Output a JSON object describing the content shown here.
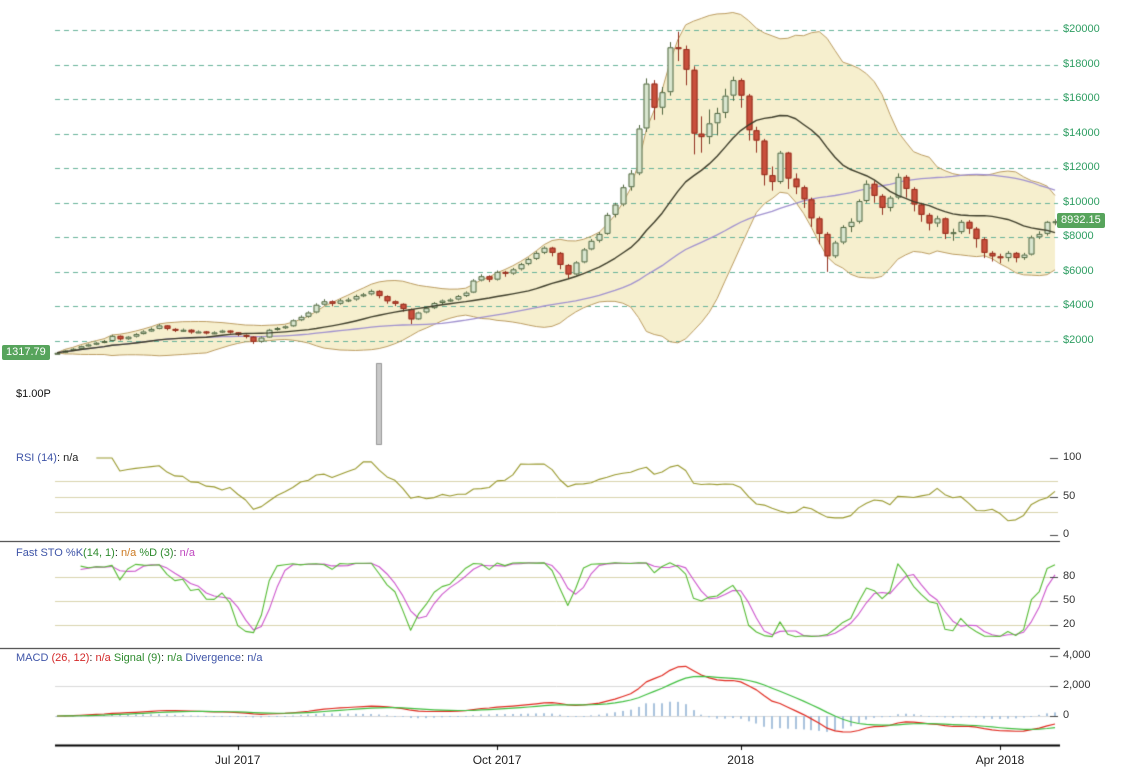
{
  "chart_data": {
    "type": "candlestick",
    "x_ticks": [
      {
        "index": 23,
        "label": "Jul 2017"
      },
      {
        "index": 56,
        "label": "Oct 2017"
      },
      {
        "index": 87,
        "label": "2018"
      },
      {
        "index": 120,
        "label": "Apr 2018"
      }
    ],
    "y_axis": {
      "side": "right",
      "ticks": [
        {
          "value": 20000,
          "label": "$20000"
        },
        {
          "value": 18000,
          "label": "$18000"
        },
        {
          "value": 16000,
          "label": "$16000"
        },
        {
          "value": 14000,
          "label": "$14000"
        },
        {
          "value": 12000,
          "label": "$12000"
        },
        {
          "value": 10000,
          "label": "$10000"
        },
        {
          "value": 8000,
          "label": "$8000"
        },
        {
          "value": 6000,
          "label": "$6000"
        },
        {
          "value": 4000,
          "label": "$4000"
        },
        {
          "value": 2000,
          "label": "$2000"
        }
      ]
    },
    "badges": {
      "start_label": "1317.79",
      "start_price": 1317.79,
      "last_label": "8932.15",
      "last_price": 8932.15
    },
    "volume_marker": {
      "index": 41,
      "label": "$1.00P"
    },
    "overlays": {
      "bollinger": {
        "period": 20,
        "stddev": 2
      },
      "sma_fast_period": 20,
      "sma_slow_period": 50
    },
    "candles": [
      [
        1280,
        1340,
        1260,
        1317
      ],
      [
        1317,
        1480,
        1300,
        1450
      ],
      [
        1450,
        1590,
        1430,
        1550
      ],
      [
        1550,
        1730,
        1530,
        1700
      ],
      [
        1700,
        1850,
        1680,
        1800
      ],
      [
        1800,
        1950,
        1760,
        1900
      ],
      [
        1900,
        2060,
        1870,
        2000
      ],
      [
        2000,
        2360,
        1980,
        2300
      ],
      [
        2300,
        2320,
        2030,
        2100
      ],
      [
        2100,
        2290,
        2060,
        2250
      ],
      [
        2250,
        2450,
        2200,
        2400
      ],
      [
        2400,
        2620,
        2380,
        2550
      ],
      [
        2550,
        2780,
        2520,
        2700
      ],
      [
        2700,
        2980,
        2680,
        2900
      ],
      [
        2900,
        2920,
        2620,
        2700
      ],
      [
        2700,
        2740,
        2520,
        2600
      ],
      [
        2600,
        2720,
        2550,
        2650
      ],
      [
        2650,
        2680,
        2420,
        2500
      ],
      [
        2500,
        2610,
        2460,
        2550
      ],
      [
        2550,
        2580,
        2380,
        2450
      ],
      [
        2450,
        2560,
        2400,
        2500
      ],
      [
        2500,
        2650,
        2460,
        2600
      ],
      [
        2600,
        2620,
        2430,
        2500
      ],
      [
        2500,
        2520,
        2280,
        2350
      ],
      [
        2350,
        2380,
        2150,
        2250
      ],
      [
        2250,
        2270,
        1830,
        1950
      ],
      [
        1950,
        2260,
        1900,
        2200
      ],
      [
        2200,
        2700,
        2180,
        2650
      ],
      [
        2650,
        2810,
        2600,
        2750
      ],
      [
        2750,
        2900,
        2700,
        2850
      ],
      [
        2850,
        3250,
        2820,
        3200
      ],
      [
        3200,
        3480,
        3150,
        3400
      ],
      [
        3400,
        3720,
        3350,
        3650
      ],
      [
        3650,
        4180,
        3600,
        4100
      ],
      [
        4100,
        4420,
        4050,
        4300
      ],
      [
        4300,
        4350,
        4010,
        4150
      ],
      [
        4150,
        4430,
        4100,
        4350
      ],
      [
        4350,
        4500,
        4250,
        4400
      ],
      [
        4400,
        4680,
        4330,
        4600
      ],
      [
        4600,
        4780,
        4540,
        4700
      ],
      [
        4700,
        4980,
        4640,
        4900
      ],
      [
        4900,
        4940,
        4470,
        4600
      ],
      [
        4600,
        4640,
        4160,
        4300
      ],
      [
        4300,
        4350,
        4020,
        4150
      ],
      [
        4150,
        4180,
        3700,
        3850
      ],
      [
        3850,
        3880,
        2980,
        3250
      ],
      [
        3250,
        3700,
        3220,
        3650
      ],
      [
        3650,
        3960,
        3600,
        3900
      ],
      [
        3900,
        4250,
        3850,
        4200
      ],
      [
        4200,
        4400,
        4140,
        4340
      ],
      [
        4340,
        4470,
        4280,
        4400
      ],
      [
        4400,
        4660,
        4350,
        4600
      ],
      [
        4600,
        4870,
        4550,
        4800
      ],
      [
        4800,
        5580,
        4770,
        5500
      ],
      [
        5500,
        5860,
        5450,
        5750
      ],
      [
        5750,
        5800,
        5410,
        5550
      ],
      [
        5550,
        6080,
        5500,
        6000
      ],
      [
        6000,
        6060,
        5720,
        5900
      ],
      [
        5900,
        6230,
        5830,
        6150
      ],
      [
        6150,
        6520,
        6080,
        6450
      ],
      [
        6450,
        6830,
        6380,
        6750
      ],
      [
        6750,
        7190,
        6690,
        7100
      ],
      [
        7100,
        7480,
        7030,
        7400
      ],
      [
        7400,
        7450,
        6900,
        7100
      ],
      [
        7100,
        7150,
        6150,
        6400
      ],
      [
        6400,
        6450,
        5600,
        5850
      ],
      [
        5850,
        6620,
        5800,
        6550
      ],
      [
        6550,
        7380,
        6500,
        7300
      ],
      [
        7300,
        7900,
        7250,
        7800
      ],
      [
        7800,
        8300,
        7700,
        8200
      ],
      [
        8200,
        9420,
        8150,
        9300
      ],
      [
        9300,
        10000,
        9150,
        9900
      ],
      [
        9900,
        11050,
        9800,
        10900
      ],
      [
        10900,
        11900,
        10700,
        11700
      ],
      [
        11700,
        14500,
        11600,
        14300
      ],
      [
        14300,
        17200,
        14100,
        16900
      ],
      [
        16900,
        17100,
        14800,
        15500
      ],
      [
        15500,
        16700,
        15100,
        16400
      ],
      [
        16400,
        19300,
        16200,
        19000
      ],
      [
        19000,
        19900,
        18200,
        18900
      ],
      [
        18900,
        19100,
        16800,
        17700
      ],
      [
        17700,
        17900,
        12800,
        14000
      ],
      [
        14000,
        15000,
        12900,
        13800
      ],
      [
        13800,
        15400,
        13400,
        14600
      ],
      [
        14600,
        15500,
        13900,
        15200
      ],
      [
        15200,
        16600,
        14900,
        16200
      ],
      [
        16200,
        17300,
        15900,
        17100
      ],
      [
        17100,
        17200,
        15500,
        16200
      ],
      [
        16200,
        16300,
        13600,
        14200
      ],
      [
        14200,
        14400,
        12900,
        13600
      ],
      [
        13600,
        13700,
        11000,
        11600
      ],
      [
        11600,
        12100,
        10700,
        11200
      ],
      [
        11200,
        13000,
        11100,
        12900
      ],
      [
        12900,
        12950,
        10800,
        11400
      ],
      [
        11400,
        11700,
        10500,
        10900
      ],
      [
        10900,
        11000,
        9700,
        10200
      ],
      [
        10200,
        10300,
        8600,
        9100
      ],
      [
        9100,
        9200,
        7600,
        8200
      ],
      [
        8200,
        8300,
        6000,
        6900
      ],
      [
        6900,
        7800,
        6800,
        7700
      ],
      [
        7700,
        8700,
        7600,
        8600
      ],
      [
        8600,
        9100,
        8300,
        8900
      ],
      [
        8900,
        10200,
        8800,
        10100
      ],
      [
        10100,
        11300,
        10000,
        11100
      ],
      [
        11100,
        11250,
        10000,
        10400
      ],
      [
        10400,
        10500,
        9300,
        9700
      ],
      [
        9700,
        10400,
        9500,
        10300
      ],
      [
        10300,
        11700,
        10200,
        11500
      ],
      [
        11500,
        11600,
        10300,
        10800
      ],
      [
        10800,
        10900,
        9500,
        9900
      ],
      [
        9900,
        10000,
        8900,
        9300
      ],
      [
        9300,
        9400,
        8400,
        8800
      ],
      [
        8800,
        9250,
        8600,
        9100
      ],
      [
        9100,
        9150,
        7900,
        8200
      ],
      [
        8200,
        8500,
        7800,
        8300
      ],
      [
        8300,
        9000,
        8200,
        8900
      ],
      [
        8900,
        9000,
        8200,
        8500
      ],
      [
        8500,
        8600,
        7400,
        7900
      ],
      [
        7900,
        8000,
        6800,
        7100
      ],
      [
        7100,
        7200,
        6600,
        6900
      ],
      [
        6900,
        7050,
        6500,
        6800
      ],
      [
        6800,
        7200,
        6600,
        7100
      ],
      [
        7100,
        7150,
        6550,
        6800
      ],
      [
        6800,
        7100,
        6700,
        7000
      ],
      [
        7000,
        8100,
        6950,
        8000
      ],
      [
        8000,
        8350,
        7900,
        8200
      ],
      [
        8200,
        8950,
        8100,
        8900
      ],
      [
        8900,
        9050,
        8700,
        8932.15
      ]
    ],
    "indicators": {
      "rsi": {
        "period": 14,
        "label_parts": [
          {
            "text": "RSI ",
            "color": "#3f55a8"
          },
          {
            "text": "(14)",
            "color": "#3f55a8"
          },
          {
            "text": ": ",
            "color": "#222222"
          },
          {
            "text": "n/a",
            "color": "#222222"
          }
        ],
        "axis_ticks": [
          {
            "value": 100,
            "label": "100"
          },
          {
            "value": 50,
            "label": "50"
          },
          {
            "value": 0,
            "label": "0"
          }
        ],
        "gridlines": [
          70,
          50,
          30
        ]
      },
      "stochastic": {
        "k_period": 14,
        "k_smooth": 1,
        "d_period": 3,
        "label_parts": [
          {
            "text": "Fast STO %K",
            "color": "#3f55a8"
          },
          {
            "text": "(14, 1)",
            "color": "#2e8b2e"
          },
          {
            "text": ": ",
            "color": "#222222"
          },
          {
            "text": "n/a",
            "color": "#cc7a22"
          },
          {
            "text": " %D (3)",
            "color": "#2e8b2e"
          },
          {
            "text": ": ",
            "color": "#222222"
          },
          {
            "text": "n/a",
            "color": "#c04ac0"
          }
        ],
        "axis_ticks": [
          {
            "value": 80,
            "label": "80"
          },
          {
            "value": 50,
            "label": "50"
          },
          {
            "value": 20,
            "label": "20"
          }
        ],
        "gridlines": [
          80,
          50,
          20
        ]
      },
      "macd": {
        "fast": 12,
        "slow": 26,
        "signal": 9,
        "label_parts": [
          {
            "text": "MACD ",
            "color": "#3f55a8"
          },
          {
            "text": "(26, 12)",
            "color": "#d42a2a"
          },
          {
            "text": ": ",
            "color": "#222222"
          },
          {
            "text": "n/a",
            "color": "#d42a2a"
          },
          {
            "text": " Signal (9)",
            "color": "#2e8b2e"
          },
          {
            "text": ": ",
            "color": "#222222"
          },
          {
            "text": "n/a",
            "color": "#2e8b2e"
          },
          {
            "text": " Divergence",
            "color": "#3f55a8"
          },
          {
            "text": ": ",
            "color": "#222222"
          },
          {
            "text": "n/a",
            "color": "#3f55a8"
          }
        ],
        "axis_ticks": [
          {
            "value": 4000,
            "label": "4,000"
          },
          {
            "value": 2000,
            "label": "2,000"
          },
          {
            "value": 0,
            "label": "0"
          }
        ],
        "gridlines": [
          2000,
          0
        ]
      }
    }
  },
  "colors": {
    "axis_label_green": "#2f9e63",
    "badge_bg": "#57a45c",
    "badge_text": "#ffffff",
    "grid_dashed": "#66b298",
    "candle_up_fill": "#d9e6d0",
    "candle_up_stroke": "#50663f",
    "candle_down_fill": "#c94f3c",
    "candle_down_stroke": "#93301f",
    "bollinger_fill": "#f5ecc6",
    "bollinger_edge": "#bb9c61",
    "sma_fast": "#3d3d2a",
    "sma_slow": "#a091cf",
    "rsi_line": "#99992e",
    "sto_k": "#55bb33",
    "sto_d": "#cc55cc",
    "macd_line": "#e02a20",
    "macd_signal": "#3fbf3f",
    "macd_hist": "#a9c3dd",
    "panel_grid": "#d9d3ac",
    "macd_grid": "#d8d8d8",
    "separator": "#222222",
    "axis_line": "#000000",
    "tick_dash": "#444444",
    "volume_bar": "#c8c8c8",
    "volume_bar_edge": "#999999"
  }
}
